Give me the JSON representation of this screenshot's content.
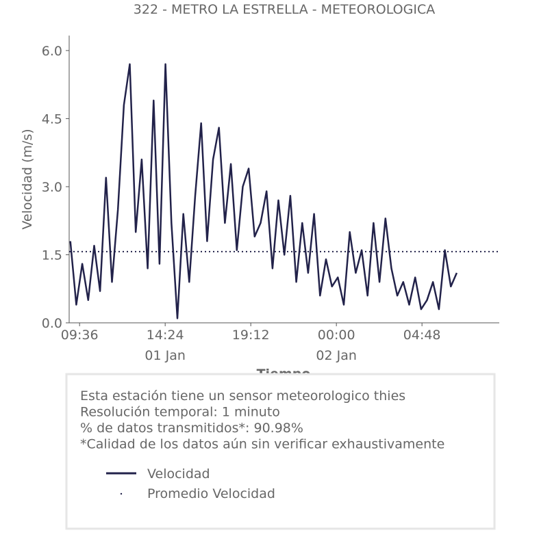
{
  "chart_data": {
    "type": "line",
    "title": "322 - METRO LA ESTRELLA - METEOROLOGICA",
    "y_label": "Velocidad (m/s)",
    "x_label": "Tiempo",
    "x": [
      "01 Jan 09:05",
      "01 Jan 09:25",
      "01 Jan 09:45",
      "01 Jan 10:05",
      "01 Jan 10:25",
      "01 Jan 10:45",
      "01 Jan 11:05",
      "01 Jan 11:25",
      "01 Jan 11:45",
      "01 Jan 12:05",
      "01 Jan 12:25",
      "01 Jan 12:45",
      "01 Jan 13:05",
      "01 Jan 13:25",
      "01 Jan 13:45",
      "01 Jan 14:05",
      "01 Jan 14:25",
      "01 Jan 14:45",
      "01 Jan 15:05",
      "01 Jan 15:25",
      "01 Jan 15:45",
      "01 Jan 16:05",
      "01 Jan 16:25",
      "01 Jan 16:45",
      "01 Jan 17:05",
      "01 Jan 17:25",
      "01 Jan 17:45",
      "01 Jan 18:05",
      "01 Jan 18:25",
      "01 Jan 18:45",
      "01 Jan 19:05",
      "01 Jan 19:25",
      "01 Jan 19:45",
      "01 Jan 20:05",
      "01 Jan 20:25",
      "01 Jan 20:45",
      "01 Jan 21:05",
      "01 Jan 21:25",
      "01 Jan 21:45",
      "01 Jan 22:05",
      "01 Jan 22:25",
      "01 Jan 22:45",
      "01 Jan 23:05",
      "01 Jan 23:25",
      "01 Jan 23:45",
      "02 Jan 00:05",
      "02 Jan 00:25",
      "02 Jan 00:45",
      "02 Jan 01:05",
      "02 Jan 01:25",
      "02 Jan 01:45",
      "02 Jan 02:05",
      "02 Jan 02:25",
      "02 Jan 02:45",
      "02 Jan 03:05",
      "02 Jan 03:25",
      "02 Jan 03:45",
      "02 Jan 04:05",
      "02 Jan 04:25",
      "02 Jan 04:45",
      "02 Jan 05:05",
      "02 Jan 05:25",
      "02 Jan 05:45",
      "02 Jan 06:05",
      "02 Jan 06:25",
      "02 Jan 06:45"
    ],
    "series": [
      {
        "name": "Velocidad",
        "color": "#22224a",
        "values": [
          1.8,
          0.4,
          1.3,
          0.5,
          1.7,
          0.7,
          3.2,
          0.9,
          2.5,
          4.8,
          5.7,
          2.0,
          3.6,
          1.2,
          4.9,
          1.3,
          5.7,
          2.2,
          0.1,
          2.4,
          0.9,
          2.8,
          4.4,
          1.8,
          3.6,
          4.3,
          2.2,
          3.5,
          1.6,
          3.0,
          3.4,
          1.9,
          2.2,
          2.9,
          1.2,
          2.7,
          1.5,
          2.8,
          0.9,
          2.2,
          1.1,
          2.4,
          0.6,
          1.4,
          0.8,
          1.0,
          0.4,
          2.0,
          1.1,
          1.6,
          0.6,
          2.2,
          0.9,
          2.3,
          1.2,
          0.6,
          0.9,
          0.4,
          1.0,
          0.3,
          0.5,
          0.9,
          0.3,
          1.6,
          0.8,
          1.1
        ]
      }
    ],
    "reference_line": {
      "name": "Promedio Velocidad",
      "value": 1.57,
      "color": "#22224a",
      "style": "dotted"
    },
    "xlim": [
      "01 Jan 09:01",
      "02 Jan 09:08"
    ],
    "xticks": [
      {
        "value": "01 Jan 09:36",
        "label": "09:36"
      },
      {
        "value": "01 Jan 14:24",
        "label": "14:24"
      },
      {
        "value": "01 Jan 19:12",
        "label": "19:12"
      },
      {
        "value": "02 Jan 00:00",
        "label": "00:00"
      },
      {
        "value": "02 Jan 04:48",
        "label": "04:48"
      }
    ],
    "xtick_dates": [
      {
        "value": "01 Jan 14:24",
        "label": "01 Jan"
      },
      {
        "value": "02 Jan 00:00",
        "label": "02 Jan"
      }
    ],
    "ylim": [
      0,
      6.33
    ],
    "yticks": [
      {
        "value": 0,
        "label": "0.0"
      },
      {
        "value": 1.5,
        "label": "1.5"
      },
      {
        "value": 3,
        "label": "3.0"
      },
      {
        "value": 4.5,
        "label": "4.5"
      },
      {
        "value": 6,
        "label": "6.0"
      }
    ],
    "notes": [
      "Esta estación tiene un sensor meteorologico thies",
      "Resolución temporal: 1 minuto",
      "% de datos transmitidos*: 90.98%",
      "*Calidad de los datos aún sin verificar exhaustivamente"
    ]
  }
}
